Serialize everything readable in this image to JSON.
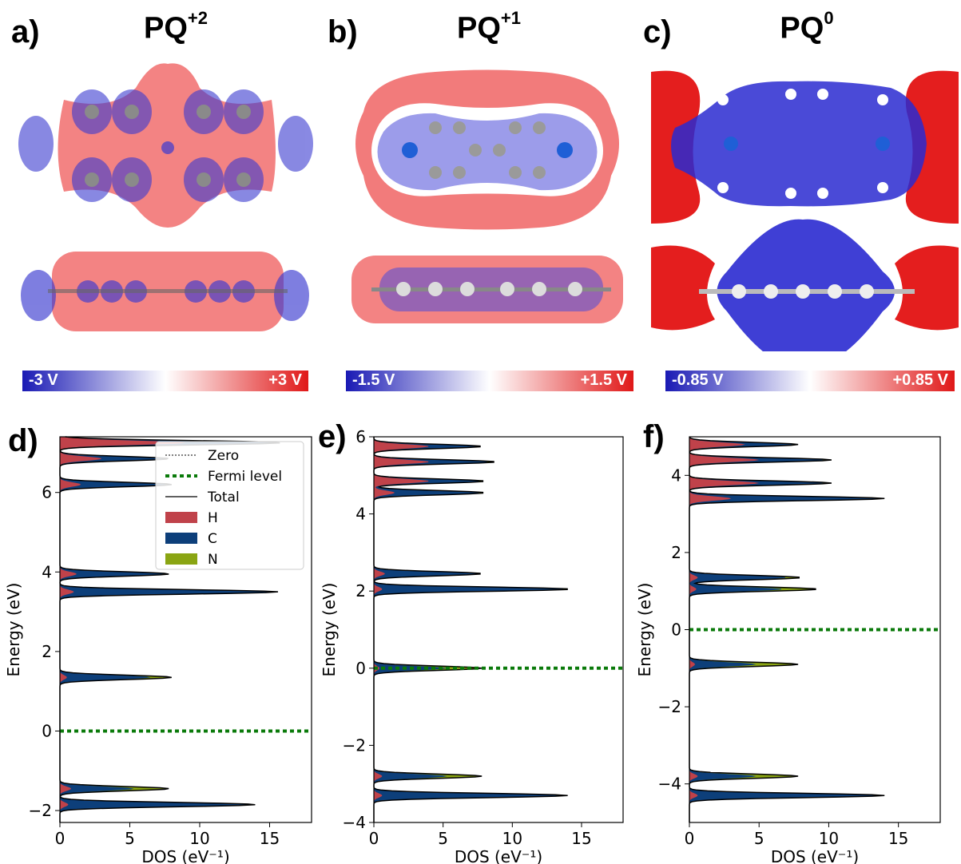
{
  "panels": {
    "a": {
      "label": "a)",
      "title_base": "PQ",
      "title_sup": "+2",
      "cb_neg": "-3 V",
      "cb_pos": "+3 V"
    },
    "b": {
      "label": "b)",
      "title_base": "PQ",
      "title_sup": "+1",
      "cb_neg": "-1.5 V",
      "cb_pos": "+1.5 V"
    },
    "c": {
      "label": "c)",
      "title_base": "PQ",
      "title_sup": "0",
      "cb_neg": "-0.85 V",
      "cb_pos": "+0.85 V"
    },
    "d": {
      "label": "d)"
    },
    "e": {
      "label": "e)"
    },
    "f": {
      "label": "f)"
    }
  },
  "colors": {
    "H": "#c0424a",
    "C": "#0d3f7a",
    "N": "#8aa513",
    "fermi": "#0a7a0a",
    "red_field": "#ef4c4c",
    "blue_field": "#2a2ad0"
  },
  "chart_data": [
    {
      "type": "area",
      "panel": "d",
      "xlabel": "DOS (eV⁻¹)",
      "ylabel": "Energy (eV)",
      "xlim": [
        0,
        18
      ],
      "ylim": [
        -2.3,
        7.4
      ],
      "xticks": [
        0,
        5,
        10,
        15
      ],
      "yticks": [
        -2,
        0,
        2,
        4,
        6
      ],
      "fermi_level": 0,
      "legend": {
        "placement": "top-right",
        "entries": [
          "Zero",
          "Fermi level",
          "Total",
          "H",
          "C",
          "N"
        ]
      },
      "peaks": [
        {
          "e": 7.25,
          "total": 15.8,
          "h": 9.0,
          "n": 0.3
        },
        {
          "e": 6.85,
          "total": 7.8,
          "h": 3.0,
          "n": 0.3
        },
        {
          "e": 6.2,
          "total": 8.0,
          "h": 1.5,
          "n": 0.4
        },
        {
          "e": 3.95,
          "total": 7.8,
          "h": 1.2,
          "n": 0.3
        },
        {
          "e": 3.5,
          "total": 15.6,
          "h": 1.0,
          "n": 0.4
        },
        {
          "e": 1.35,
          "total": 8.0,
          "h": 0.5,
          "n": 1.5
        },
        {
          "e": -1.45,
          "total": 7.8,
          "h": 0.8,
          "n": 2.5
        },
        {
          "e": -1.85,
          "total": 14.0,
          "h": 0.6,
          "n": 0.3
        }
      ]
    },
    {
      "type": "area",
      "panel": "e",
      "xlabel": "DOS (eV⁻¹)",
      "ylabel": "Energy (eV)",
      "xlim": [
        0,
        18
      ],
      "ylim": [
        -4,
        6
      ],
      "xticks": [
        0,
        5,
        10,
        15
      ],
      "yticks": [
        -4,
        -2,
        0,
        2,
        4,
        6
      ],
      "fermi_level": 0,
      "peaks": [
        {
          "e": 5.75,
          "total": 7.8,
          "h": 4.0,
          "n": 0.3
        },
        {
          "e": 5.35,
          "total": 8.8,
          "h": 4.0,
          "n": 0.5
        },
        {
          "e": 4.85,
          "total": 8.0,
          "h": 4.0,
          "n": 0.3
        },
        {
          "e": 4.55,
          "total": 8.0,
          "h": 1.5,
          "n": 0.3
        },
        {
          "e": 2.45,
          "total": 7.8,
          "h": 0.8,
          "n": 0.3
        },
        {
          "e": 2.05,
          "total": 14.2,
          "h": 0.6,
          "n": 0.3
        },
        {
          "e": 0.0,
          "total": 7.8,
          "h": 0.4,
          "n": 2.5
        },
        {
          "e": -2.8,
          "total": 7.8,
          "h": 0.6,
          "n": 2.5
        },
        {
          "e": -3.3,
          "total": 14.0,
          "h": 0.6,
          "n": 0.3
        }
      ]
    },
    {
      "type": "area",
      "panel": "f",
      "xlabel": "DOS (eV⁻¹)",
      "ylabel": "Energy (eV)",
      "xlim": [
        0,
        18
      ],
      "ylim": [
        -5,
        5
      ],
      "xticks": [
        0,
        5,
        10,
        15
      ],
      "yticks": [
        -4,
        -2,
        0,
        2,
        4
      ],
      "fermi_level": 0,
      "peaks": [
        {
          "e": 4.8,
          "total": 7.8,
          "h": 4.0,
          "n": 0.3
        },
        {
          "e": 4.4,
          "total": 10.2,
          "h": 5.0,
          "n": 0.4
        },
        {
          "e": 3.8,
          "total": 10.2,
          "h": 5.0,
          "n": 0.4
        },
        {
          "e": 3.4,
          "total": 14.0,
          "h": 3.0,
          "n": 0.4
        },
        {
          "e": 1.35,
          "total": 8.0,
          "h": 0.6,
          "n": 1.0
        },
        {
          "e": 1.05,
          "total": 9.2,
          "h": 0.5,
          "n": 2.5
        },
        {
          "e": -0.9,
          "total": 7.8,
          "h": 0.4,
          "n": 3.0
        },
        {
          "e": -3.8,
          "total": 7.8,
          "h": 0.6,
          "n": 3.0
        },
        {
          "e": -4.3,
          "total": 14.0,
          "h": 0.6,
          "n": 0.3
        }
      ]
    }
  ]
}
